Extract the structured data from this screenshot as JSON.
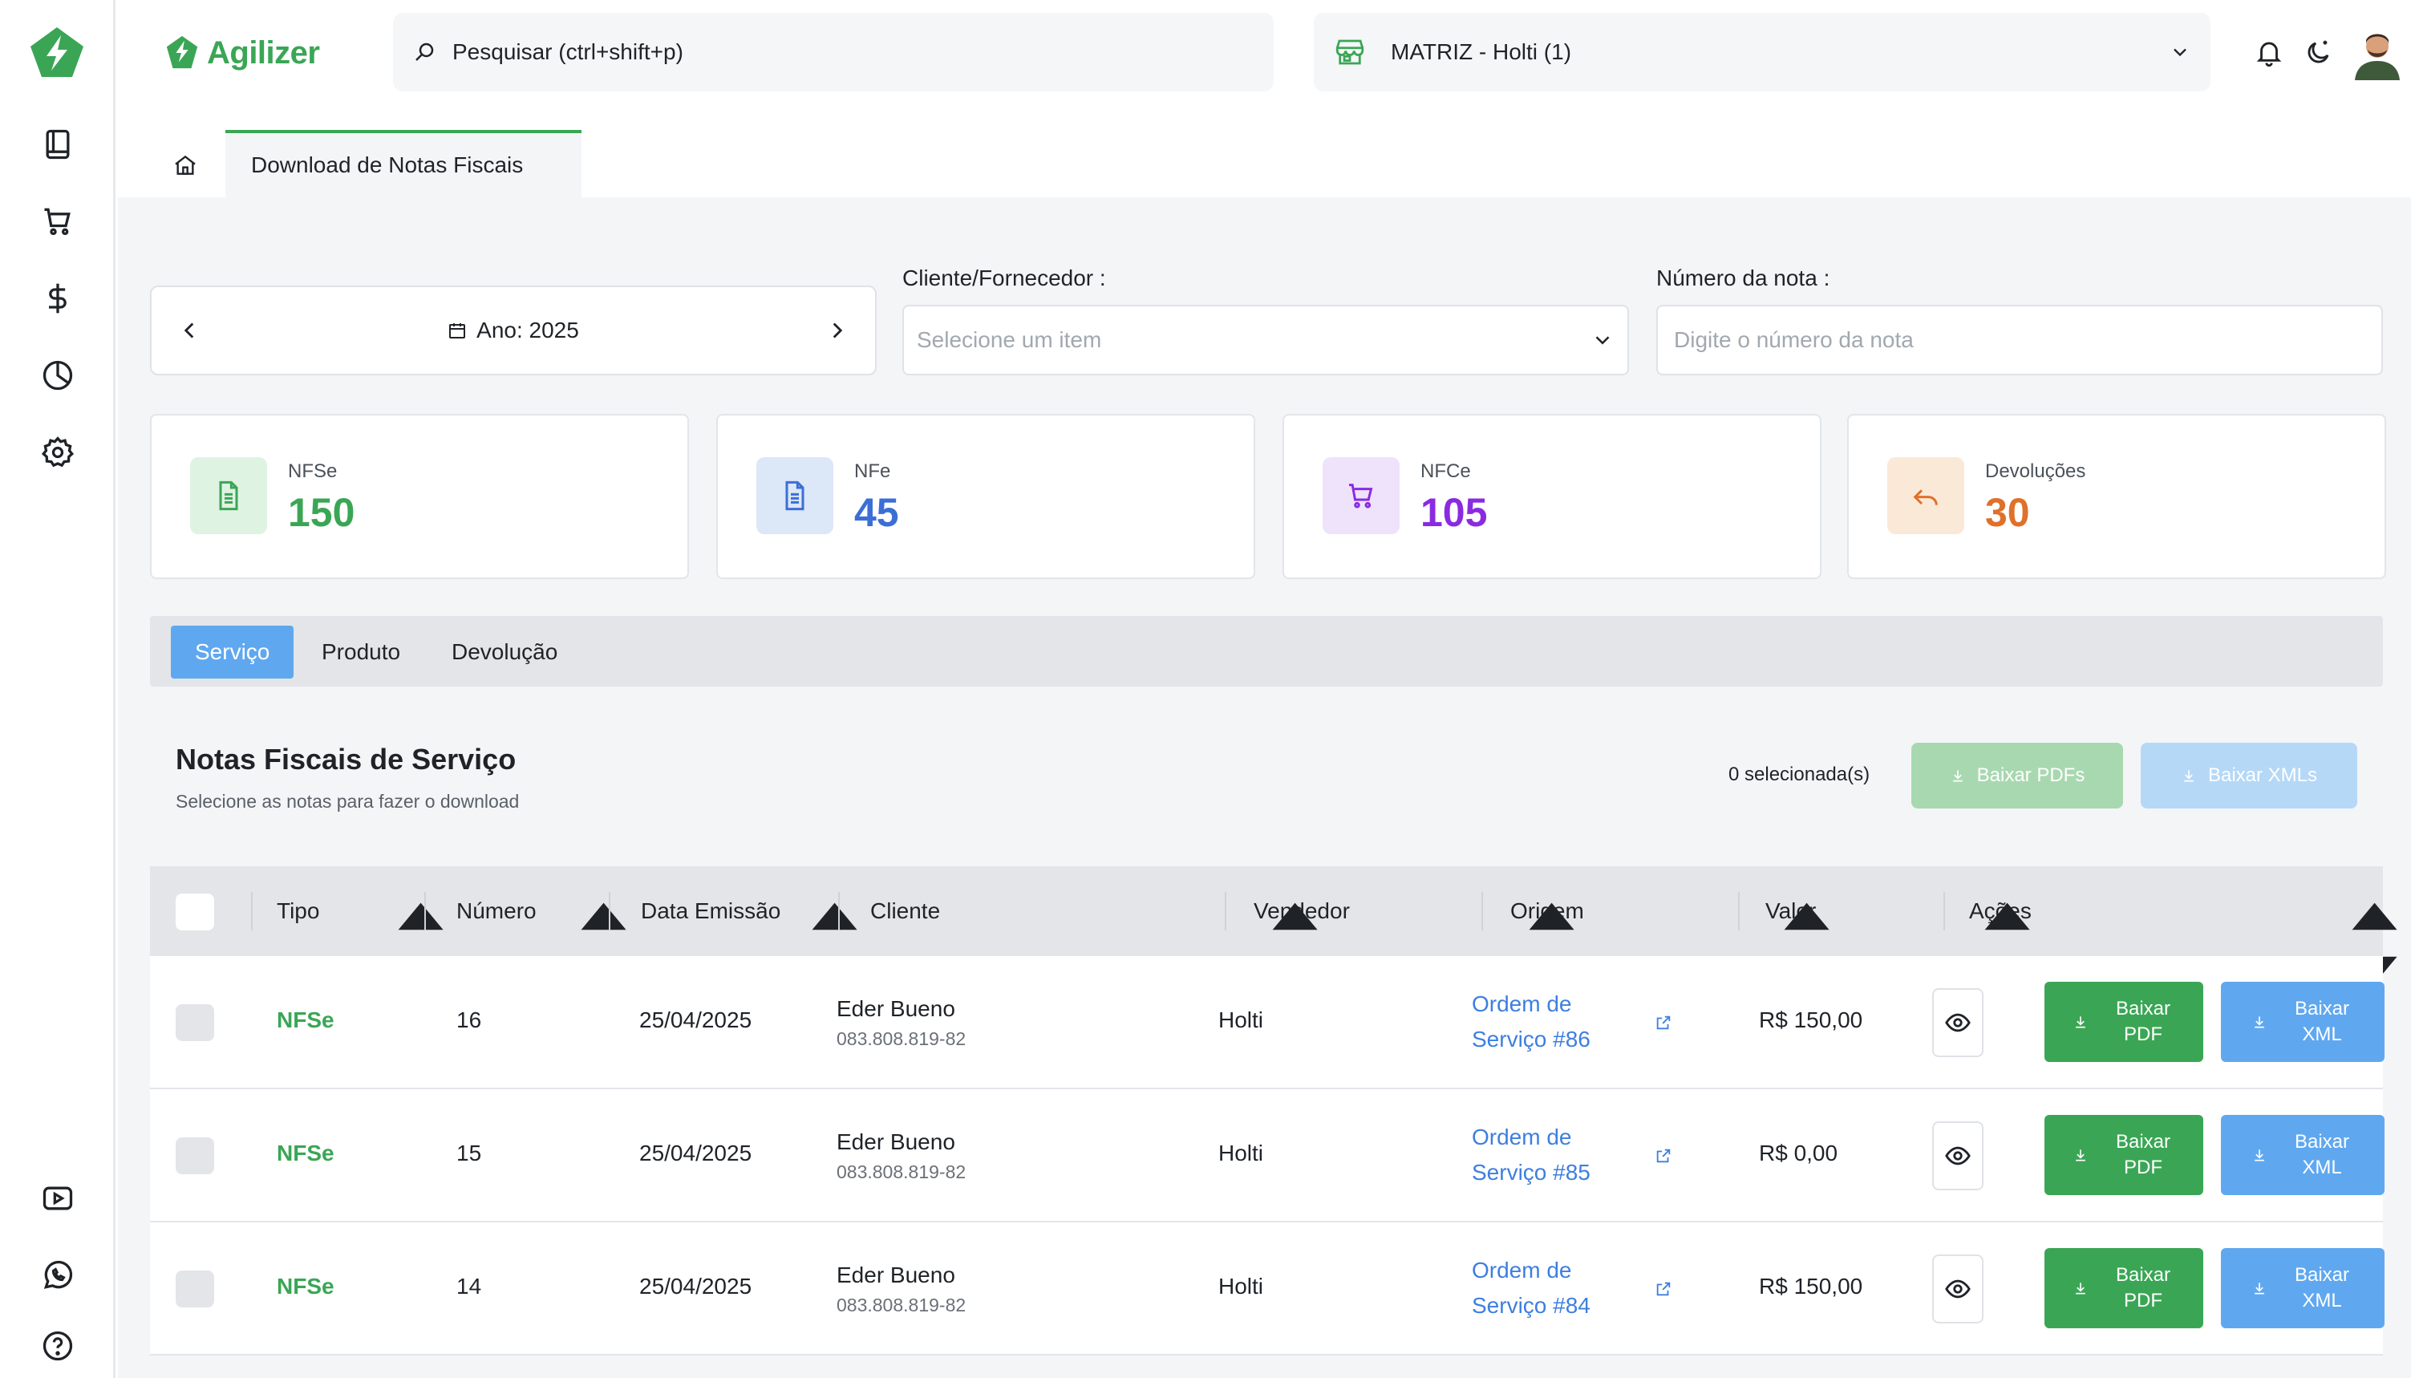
{
  "app": {
    "brand": "Agilizer"
  },
  "colors": {
    "accent_green": "#3aa655",
    "accent_blue": "#5fa8f0",
    "link_blue": "#3d7fe0",
    "nfse": "#3aa655",
    "nfe": "#3b6fd6",
    "nfce": "#8a2be2",
    "devolucoes": "#e0702a"
  },
  "rail": {
    "logo_icon": "agilizer-bolt-icon",
    "top_icons": [
      "book-icon",
      "cart-icon",
      "dollar-icon",
      "pie-chart-icon",
      "gear-icon"
    ],
    "bottom_icons": [
      "youtube-icon",
      "whatsapp-icon",
      "help-circle-icon"
    ]
  },
  "header": {
    "search_placeholder": "Pesquisar (ctrl+shift+p)",
    "branch": "MATRIZ - Holti (1)",
    "icons": [
      "bell-icon",
      "moon-icon",
      "avatar"
    ]
  },
  "breadcrumb": {
    "tab": "Download de Notas Fiscais"
  },
  "filters": {
    "year": "Ano: 2025",
    "client_label": "Cliente/Fornecedor :",
    "client_placeholder": "Selecione um item",
    "number_label": "Número da nota :",
    "number_placeholder": "Digite o número da nota"
  },
  "stats": [
    {
      "label": "NFSe",
      "value": "150"
    },
    {
      "label": "NFe",
      "value": "45"
    },
    {
      "label": "NFCe",
      "value": "105"
    },
    {
      "label": "Devoluções",
      "value": "30"
    }
  ],
  "tabs": [
    "Serviço",
    "Produto",
    "Devolução"
  ],
  "active_tab": "Serviço",
  "list": {
    "title": "Notas Fiscais de Serviço",
    "subtitle": "Selecione as notas para fazer o download",
    "selected": "0 selecionada(s)",
    "bulk_pdf": "Baixar PDFs",
    "bulk_xml": "Baixar XMLs"
  },
  "table": {
    "columns": [
      "Tipo",
      "Número",
      "Data Emissão",
      "Cliente",
      "Vendedor",
      "Origem",
      "Valor",
      "Ações"
    ],
    "rows": [
      {
        "tipo": "NFSe",
        "numero": "16",
        "data": "25/04/2025",
        "cliente": "Eder Bueno",
        "documento": "083.808.819-82",
        "vendedor": "Holti",
        "origem_1": "Ordem de",
        "origem_2": "Serviço #86",
        "valor": "R$ 150,00"
      },
      {
        "tipo": "NFSe",
        "numero": "15",
        "data": "25/04/2025",
        "cliente": "Eder Bueno",
        "documento": "083.808.819-82",
        "vendedor": "Holti",
        "origem_1": "Ordem de",
        "origem_2": "Serviço #85",
        "valor": "R$ 0,00"
      },
      {
        "tipo": "NFSe",
        "numero": "14",
        "data": "25/04/2025",
        "cliente": "Eder Bueno",
        "documento": "083.808.819-82",
        "vendedor": "Holti",
        "origem_1": "Ordem de",
        "origem_2": "Serviço #84",
        "valor": "R$ 150,00"
      }
    ],
    "row_actions": {
      "pdf_1": "Baixar",
      "pdf_2": "PDF",
      "xml_1": "Baixar",
      "xml_2": "XML"
    }
  }
}
